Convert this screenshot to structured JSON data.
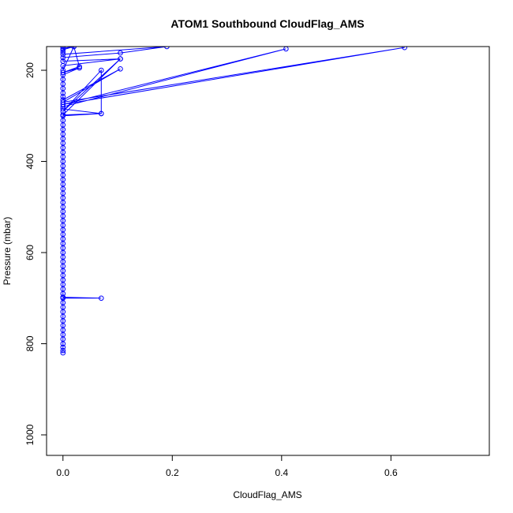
{
  "chart_data": {
    "type": "line",
    "title": "ATOM1 Southbound CloudFlag_AMS",
    "xlabel": "CloudFlag_AMS",
    "ylabel": "Pressure (mbar)",
    "xlim": [
      -0.03,
      0.78
    ],
    "ylim": [
      1045,
      148
    ],
    "y_reversed": true,
    "grid": false,
    "x_ticks": [
      {
        "value": 0.0,
        "label": "0.0"
      },
      {
        "value": 0.2,
        "label": "0.2"
      },
      {
        "value": 0.4,
        "label": "0.4"
      },
      {
        "value": 0.6,
        "label": "0.6"
      }
    ],
    "y_ticks": [
      {
        "value": 200,
        "label": "200"
      },
      {
        "value": 400,
        "label": "400"
      },
      {
        "value": 600,
        "label": "600"
      },
      {
        "value": 800,
        "label": "800"
      },
      {
        "value": 1000,
        "label": "1000"
      }
    ],
    "series": [
      {
        "color": "#0000ff",
        "points": [
          {
            "x": 0,
            "y": 820
          },
          {
            "x": 0,
            "y": 815
          },
          {
            "x": 0,
            "y": 808
          },
          {
            "x": 0,
            "y": 800
          },
          {
            "x": 0,
            "y": 790
          },
          {
            "x": 0,
            "y": 780
          },
          {
            "x": 0,
            "y": 770
          },
          {
            "x": 0,
            "y": 760
          },
          {
            "x": 0,
            "y": 750
          },
          {
            "x": 0,
            "y": 740
          },
          {
            "x": 0,
            "y": 730
          },
          {
            "x": 0,
            "y": 720
          },
          {
            "x": 0,
            "y": 710
          },
          {
            "x": 0,
            "y": 700
          },
          {
            "x": 0.07,
            "y": 700
          },
          {
            "x": 0,
            "y": 698
          },
          {
            "x": 0,
            "y": 690
          },
          {
            "x": 0,
            "y": 680
          },
          {
            "x": 0,
            "y": 670
          },
          {
            "x": 0,
            "y": 660
          },
          {
            "x": 0,
            "y": 650
          },
          {
            "x": 0,
            "y": 640
          },
          {
            "x": 0,
            "y": 630
          },
          {
            "x": 0,
            "y": 620
          },
          {
            "x": 0,
            "y": 610
          },
          {
            "x": 0,
            "y": 600
          },
          {
            "x": 0,
            "y": 590
          },
          {
            "x": 0,
            "y": 580
          },
          {
            "x": 0,
            "y": 570
          },
          {
            "x": 0,
            "y": 560
          },
          {
            "x": 0,
            "y": 550
          },
          {
            "x": 0,
            "y": 540
          },
          {
            "x": 0,
            "y": 530
          },
          {
            "x": 0,
            "y": 520
          },
          {
            "x": 0,
            "y": 510
          },
          {
            "x": 0,
            "y": 500
          },
          {
            "x": 0,
            "y": 490
          },
          {
            "x": 0,
            "y": 480
          },
          {
            "x": 0,
            "y": 470
          },
          {
            "x": 0,
            "y": 460
          },
          {
            "x": 0,
            "y": 450
          },
          {
            "x": 0,
            "y": 440
          },
          {
            "x": 0,
            "y": 430
          },
          {
            "x": 0,
            "y": 420
          },
          {
            "x": 0,
            "y": 410
          },
          {
            "x": 0,
            "y": 400
          },
          {
            "x": 0,
            "y": 390
          },
          {
            "x": 0,
            "y": 380
          },
          {
            "x": 0,
            "y": 370
          },
          {
            "x": 0,
            "y": 360
          },
          {
            "x": 0,
            "y": 350
          },
          {
            "x": 0,
            "y": 340
          },
          {
            "x": 0,
            "y": 330
          },
          {
            "x": 0,
            "y": 320
          },
          {
            "x": 0,
            "y": 310
          },
          {
            "x": 0,
            "y": 300
          },
          {
            "x": 0.07,
            "y": 295
          },
          {
            "x": 0,
            "y": 298
          },
          {
            "x": 0.105,
            "y": 175
          },
          {
            "x": 0,
            "y": 290
          },
          {
            "x": 0.07,
            "y": 200
          },
          {
            "x": 0.07,
            "y": 295
          },
          {
            "x": 0,
            "y": 285
          },
          {
            "x": 0,
            "y": 280
          },
          {
            "x": 0.408,
            "y": 153
          },
          {
            "x": 0,
            "y": 275
          },
          {
            "x": 0.625,
            "y": 150
          },
          {
            "x": 0,
            "y": 270
          },
          {
            "x": 0.105,
            "y": 197
          },
          {
            "x": 0,
            "y": 265
          },
          {
            "x": 0,
            "y": 258
          },
          {
            "x": 0,
            "y": 250
          },
          {
            "x": 0,
            "y": 240
          },
          {
            "x": 0,
            "y": 230
          },
          {
            "x": 0,
            "y": 220
          },
          {
            "x": 0,
            "y": 210
          },
          {
            "x": 0.03,
            "y": 195
          },
          {
            "x": 0,
            "y": 205
          },
          {
            "x": 0.03,
            "y": 192
          },
          {
            "x": 0.02,
            "y": 148
          },
          {
            "x": 0,
            "y": 200
          },
          {
            "x": 0,
            "y": 190
          },
          {
            "x": 0.105,
            "y": 175
          },
          {
            "x": 0,
            "y": 180
          },
          {
            "x": 0,
            "y": 172
          },
          {
            "x": 0.105,
            "y": 162
          },
          {
            "x": 0.19,
            "y": 148
          },
          {
            "x": 0,
            "y": 165
          },
          {
            "x": 0,
            "y": 160
          },
          {
            "x": 0,
            "y": 155
          },
          {
            "x": 0.02,
            "y": 148
          },
          {
            "x": 0,
            "y": 152
          },
          {
            "x": 0,
            "y": 148
          }
        ]
      }
    ]
  }
}
